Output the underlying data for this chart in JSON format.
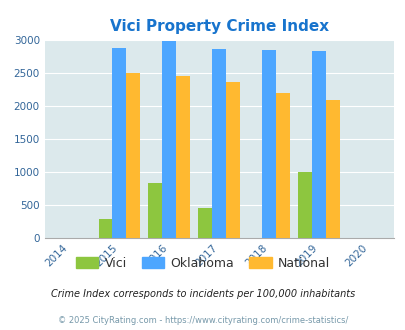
{
  "title": "Vici Property Crime Index",
  "title_color": "#1874cd",
  "years": [
    2015,
    2016,
    2017,
    2018,
    2019
  ],
  "vici": [
    275,
    825,
    450,
    0,
    1000
  ],
  "oklahoma": [
    2880,
    2980,
    2860,
    2850,
    2820
  ],
  "national": [
    2490,
    2450,
    2360,
    2190,
    2090
  ],
  "bar_colors": {
    "vici": "#8dc63f",
    "oklahoma": "#4da6ff",
    "national": "#ffb930"
  },
  "xlim": [
    2013.5,
    2020.5
  ],
  "ylim": [
    0,
    3000
  ],
  "yticks": [
    0,
    500,
    1000,
    1500,
    2000,
    2500,
    3000
  ],
  "bg_color": "#dce9ec",
  "note_line1": "Crime Index corresponds to incidents per 100,000 inhabitants",
  "note_line2": "© 2025 CityRating.com - https://www.cityrating.com/crime-statistics/",
  "legend_labels": [
    "Vici",
    "Oklahoma",
    "National"
  ],
  "bar_width": 0.28
}
